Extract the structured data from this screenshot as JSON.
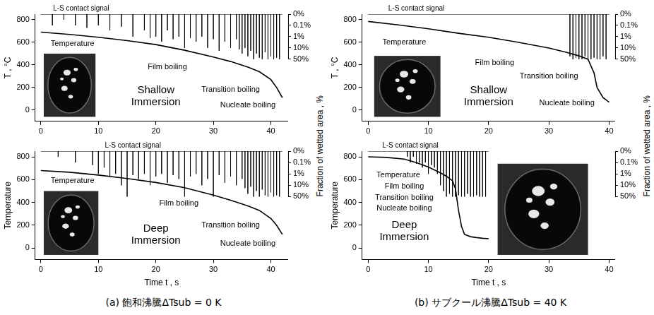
{
  "chart_data": [
    {
      "type": "line",
      "title": "Shallow Immersion",
      "ylabel": "T , °C",
      "xlim": [
        -1,
        43
      ],
      "xticks": [
        0,
        10,
        20,
        30,
        40
      ],
      "ylim": [
        -100,
        850
      ],
      "yticks": [
        0,
        200,
        400,
        600,
        800
      ],
      "y2lim": [
        0,
        50
      ],
      "y2ticks": [
        {
          "value": 0,
          "label": "0%"
        },
        {
          "value": 0.1,
          "label": "0.1%"
        },
        {
          "value": 1,
          "label": "1%"
        },
        {
          "value": 10,
          "label": "10%"
        },
        {
          "value": 50,
          "label": "50%"
        }
      ],
      "grid": false,
      "series": [
        {
          "color": "#000000",
          "x": [
            0,
            5,
            10,
            15,
            20,
            25,
            30,
            33,
            36,
            38,
            40,
            41,
            42
          ],
          "values": [
            690,
            670,
            645,
            615,
            580,
            530,
            470,
            430,
            380,
            340,
            270,
            200,
            110
          ]
        },
        {
          "color": "#000000",
          "axis": "y2",
          "x": [
            0,
            2,
            4,
            6,
            8,
            10,
            12,
            14,
            16,
            18,
            19,
            20,
            21,
            22,
            23,
            24,
            25,
            26,
            27,
            28,
            29,
            30,
            31,
            32,
            33,
            34,
            34.5,
            35,
            35.5,
            36,
            36.5,
            37,
            37.5,
            38,
            38.5,
            39,
            39.5,
            40,
            40.5,
            41,
            41.5,
            42
          ],
          "values": [
            0,
            0.1,
            0.05,
            0.1,
            0.3,
            0.1,
            0.5,
            0.2,
            1,
            0.5,
            2,
            1,
            5,
            0.5,
            3,
            1,
            10,
            2,
            5,
            1,
            10,
            3,
            20,
            5,
            10,
            3,
            15,
            30,
            10,
            40,
            20,
            50,
            30,
            45,
            50,
            25,
            50,
            40,
            50,
            45,
            50,
            0
          ]
        }
      ],
      "annotations": [
        {
          "text": "L-S contact signal",
          "x": 7,
          "y": 0,
          "axis": "y2"
        },
        {
          "text": "Temperature",
          "x": 5.5,
          "y": 590
        },
        {
          "text": "Film boiling",
          "x": 22,
          "y": 380
        },
        {
          "text": "Transition boiling",
          "x": 33,
          "y": 180
        },
        {
          "text": "Nucleate boiling",
          "x": 36,
          "y": 40
        }
      ]
    },
    {
      "type": "line",
      "title": "Deep Immersion",
      "ylabel": "Temperature",
      "xlabel": "Time t , s",
      "y2label": "Fraction of wetted area , %",
      "caption": "(a) 飽和沸騰ΔTsub = 0 K",
      "xlim": [
        -1,
        43
      ],
      "xticks": [
        0,
        10,
        20,
        30,
        40
      ],
      "ylim": [
        -100,
        850
      ],
      "yticks": [
        0,
        200,
        400,
        600,
        800
      ],
      "y2lim": [
        0,
        50
      ],
      "y2ticks": [
        {
          "value": 0,
          "label": "0%"
        },
        {
          "value": 0.1,
          "label": "0.1%"
        },
        {
          "value": 1,
          "label": "1%"
        },
        {
          "value": 10,
          "label": "10%"
        },
        {
          "value": 50,
          "label": "50%"
        }
      ],
      "grid": false,
      "series": [
        {
          "color": "#000000",
          "x": [
            0,
            5,
            10,
            15,
            20,
            25,
            30,
            33,
            36,
            38,
            40,
            41,
            42
          ],
          "values": [
            680,
            665,
            640,
            610,
            575,
            530,
            465,
            420,
            370,
            330,
            260,
            200,
            120
          ]
        },
        {
          "color": "#000000",
          "axis": "y2",
          "x": [
            0,
            3,
            6,
            9,
            10,
            11,
            12,
            13,
            14,
            15,
            16,
            17,
            18,
            19,
            20,
            21,
            22,
            23,
            24,
            25,
            26,
            27,
            28,
            29,
            30,
            31,
            32,
            33,
            34,
            35,
            35.5,
            36,
            36.5,
            37,
            37.5,
            38,
            38.5,
            39,
            39.5,
            40,
            40.5,
            41,
            41.5,
            42
          ],
          "values": [
            0,
            0.05,
            0.1,
            0.3,
            1,
            0.5,
            3,
            1,
            10,
            50,
            2,
            5,
            1,
            10,
            3,
            1,
            8,
            2,
            5,
            50,
            3,
            1,
            10,
            5,
            50,
            2,
            8,
            3,
            10,
            5,
            20,
            40,
            15,
            50,
            30,
            50,
            25,
            45,
            50,
            35,
            50,
            45,
            50,
            0
          ]
        }
      ],
      "annotations": [
        {
          "text": "L-S contact signal",
          "x": 16,
          "y": 0,
          "axis": "y2"
        },
        {
          "text": "Temperature",
          "x": 5.5,
          "y": 590
        },
        {
          "text": "Film boiling",
          "x": 24,
          "y": 390
        },
        {
          "text": "Transition boiling",
          "x": 33,
          "y": 200
        },
        {
          "text": "Nucleate boiling",
          "x": 36,
          "y": 40
        }
      ]
    },
    {
      "type": "line",
      "title": "Shallow Immersion",
      "ylabel": "T , °C",
      "xlim": [
        -1,
        41
      ],
      "xticks": [
        0,
        10,
        20,
        30,
        40
      ],
      "ylim": [
        -100,
        850
      ],
      "yticks": [
        0,
        200,
        400,
        600,
        800
      ],
      "y2lim": [
        0,
        50
      ],
      "y2ticks": [
        {
          "value": 0,
          "label": "0%"
        },
        {
          "value": 0.1,
          "label": "0.1%"
        },
        {
          "value": 1,
          "label": "1%"
        },
        {
          "value": 10,
          "label": "10%"
        },
        {
          "value": 50,
          "label": "50%"
        }
      ],
      "grid": false,
      "series": [
        {
          "color": "#000000",
          "x": [
            0,
            5,
            10,
            15,
            20,
            25,
            30,
            33,
            35,
            36.5,
            37.5,
            38,
            39,
            40
          ],
          "values": [
            785,
            755,
            720,
            680,
            645,
            600,
            550,
            510,
            480,
            450,
            330,
            200,
            110,
            70
          ]
        },
        {
          "color": "#000000",
          "axis": "y2",
          "x": [
            0,
            33.5,
            34,
            34.5,
            35,
            35.5,
            36,
            36.5,
            37,
            37.5,
            38,
            38.5,
            39,
            39.5,
            40
          ],
          "values": [
            0,
            40,
            50,
            45,
            50,
            50,
            40,
            50,
            50,
            45,
            50,
            50,
            40,
            50,
            0
          ]
        }
      ],
      "annotations": [
        {
          "text": "L-S contact signal",
          "x": 8,
          "y": 0,
          "axis": "y2"
        },
        {
          "text": "Temperature",
          "x": 6,
          "y": 600
        },
        {
          "text": "Film boiling",
          "x": 21,
          "y": 420
        },
        {
          "text": "Transition boiling",
          "x": 30,
          "y": 300
        },
        {
          "text": "Nucleate boiling",
          "x": 33,
          "y": 60
        }
      ]
    },
    {
      "type": "line",
      "title": "Deep Immersion",
      "ylabel": "Temperature",
      "xlabel": "Time t , s",
      "y2label": "Fraction of wetted area , %",
      "caption": "(b) サブクール沸騰ΔTsub = 40 K",
      "xlim": [
        -1,
        41
      ],
      "xticks": [
        0,
        10,
        20,
        30,
        40
      ],
      "ylim": [
        -100,
        850
      ],
      "yticks": [
        0,
        200,
        400,
        600,
        800
      ],
      "y2lim": [
        0,
        50
      ],
      "y2ticks": [
        {
          "value": 0,
          "label": "0%"
        },
        {
          "value": 0.1,
          "label": "0.1%"
        },
        {
          "value": 1,
          "label": "1%"
        },
        {
          "value": 10,
          "label": "10%"
        },
        {
          "value": 50,
          "label": "50%"
        }
      ],
      "grid": false,
      "series": [
        {
          "color": "#000000",
          "x": [
            0,
            3,
            6,
            8,
            10,
            12,
            13,
            14,
            14.5,
            15,
            15.5,
            16,
            17,
            18,
            19,
            20
          ],
          "values": [
            800,
            795,
            780,
            750,
            710,
            660,
            630,
            590,
            520,
            330,
            190,
            120,
            100,
            92,
            86,
            82
          ]
        },
        {
          "color": "#000000",
          "axis": "y2",
          "x": [
            0,
            6.5,
            7,
            7.5,
            8,
            8.5,
            9,
            9.5,
            10,
            10.5,
            11,
            11.5,
            12,
            12.5,
            13,
            13.5,
            14,
            14.5,
            15,
            15.5,
            16,
            16.5,
            17,
            17.5,
            18,
            18.5,
            19,
            19.5,
            20
          ],
          "values": [
            0,
            0.05,
            0.1,
            0.05,
            0.2,
            0.1,
            0.5,
            0.1,
            1,
            0.3,
            0.5,
            1,
            10,
            30,
            50,
            40,
            50,
            50,
            45,
            50,
            50,
            40,
            50,
            50,
            45,
            50,
            50,
            50,
            0
          ]
        }
      ],
      "annotations": [
        {
          "text": "L-S contact signal",
          "x": 7,
          "y": 0,
          "axis": "y2"
        },
        {
          "text": "Temperature",
          "x": 5,
          "y": 640
        },
        {
          "text": "Film boiling",
          "x": 6,
          "y": 540
        },
        {
          "text": "Transition boiling",
          "x": 6,
          "y": 440
        },
        {
          "text": "Nucleate boiling",
          "x": 6,
          "y": 350
        }
      ]
    }
  ]
}
